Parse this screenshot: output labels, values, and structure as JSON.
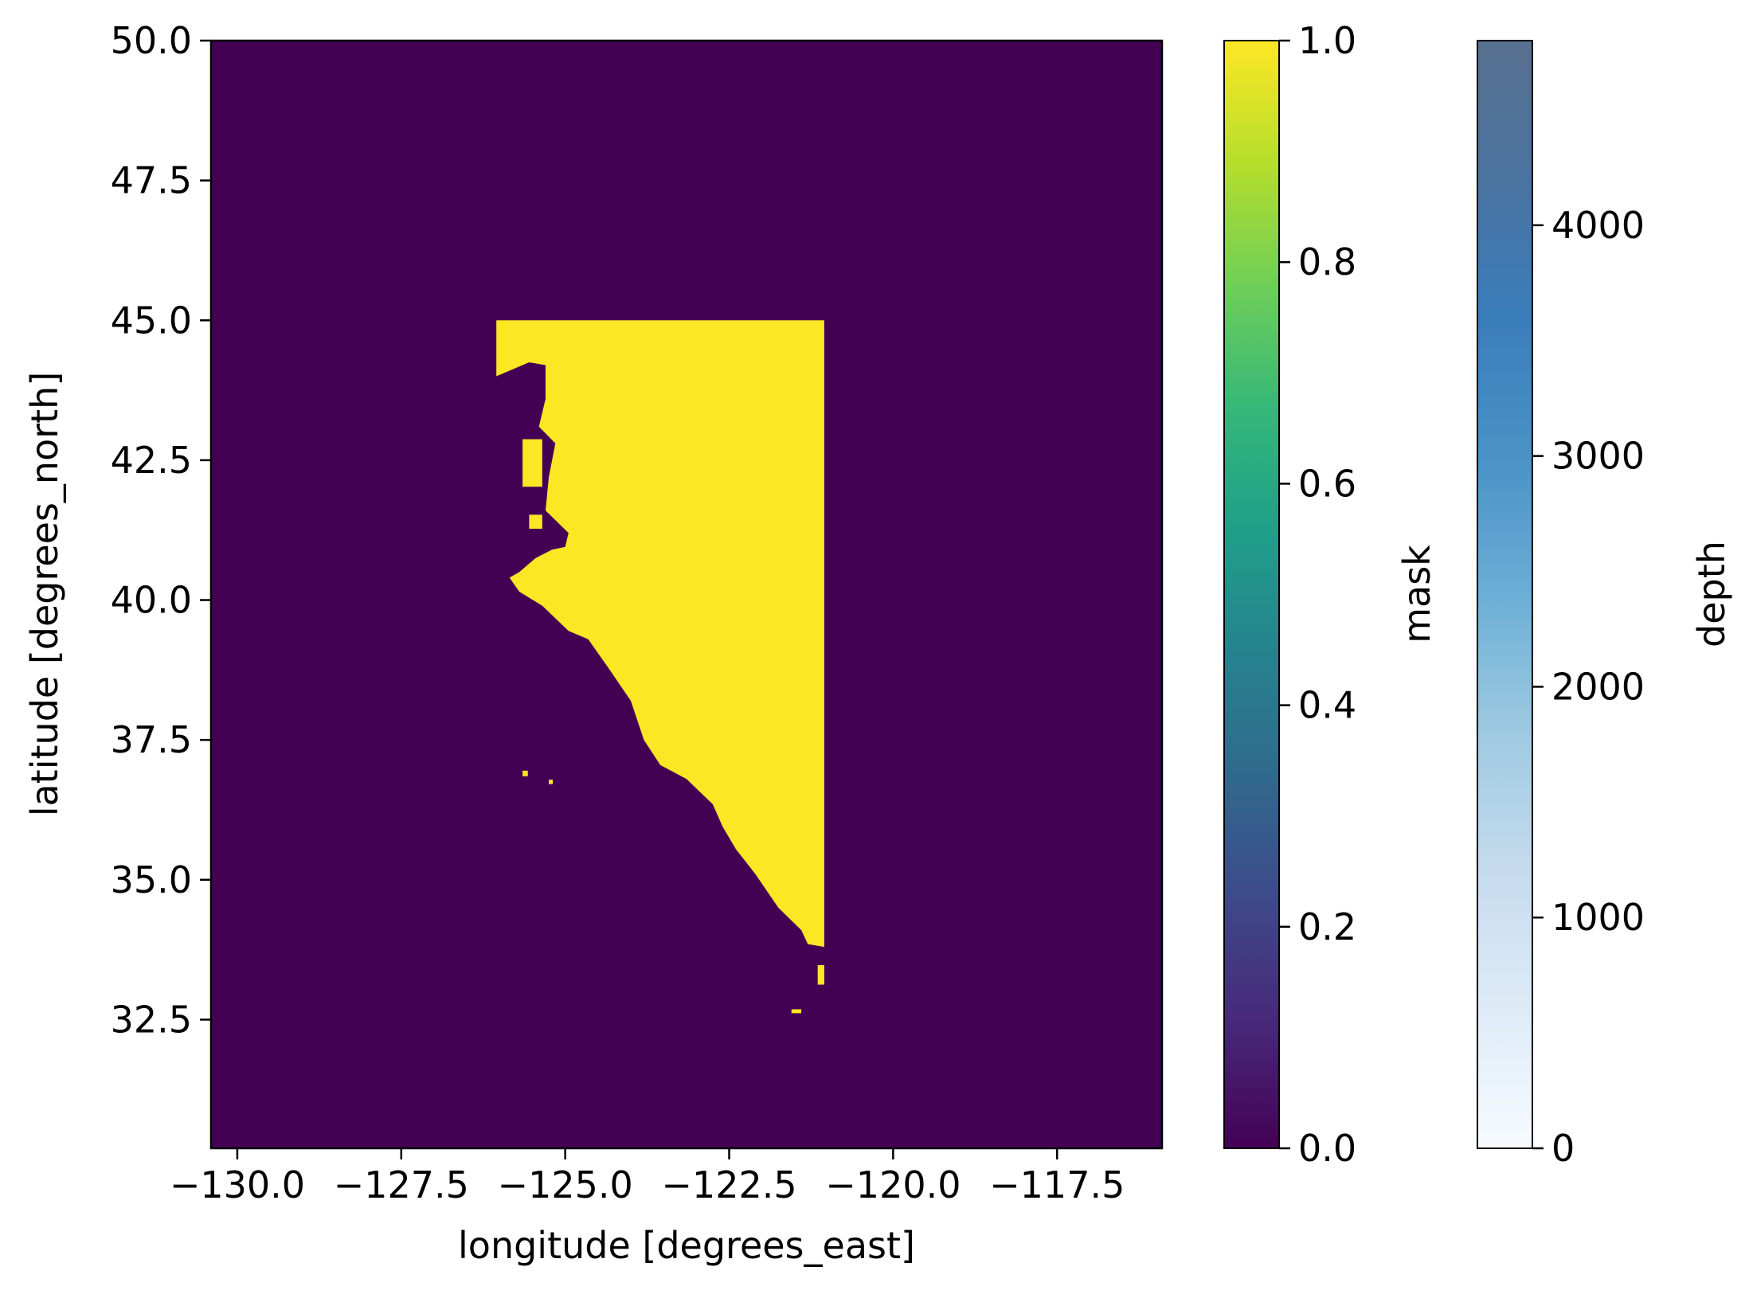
{
  "chart_data": {
    "type": "heatmap",
    "xlabel": "longitude [degrees_east]",
    "ylabel": "latitude [degrees_north]",
    "xlim": [
      -130.4,
      -115.9
    ],
    "ylim": [
      30.2,
      50.0
    ],
    "xticks": [
      -130.0,
      -127.5,
      -125.0,
      -122.5,
      -120.0,
      -117.5
    ],
    "xtick_labels": [
      "−130.0",
      "−127.5",
      "−125.0",
      "−122.5",
      "−120.0",
      "−117.5"
    ],
    "yticks": [
      32.5,
      35.0,
      37.5,
      40.0,
      42.5,
      45.0,
      47.5,
      50.0
    ],
    "ytick_labels": [
      "32.5",
      "35.0",
      "37.5",
      "40.0",
      "42.5",
      "45.0",
      "47.5",
      "50.0"
    ],
    "background_value": 0.0,
    "mask_region": {
      "value": 1.0,
      "description_bounds": {
        "lon_min": -126.05,
        "lon_max": -121.05,
        "lat_min": 33.8,
        "lat_max": 45.0
      },
      "coastline": [
        [
          -126.05,
          45.0
        ],
        [
          -121.05,
          45.0
        ],
        [
          -121.05,
          33.8
        ],
        [
          -121.3,
          33.85
        ],
        [
          -121.4,
          34.1
        ],
        [
          -121.75,
          34.5
        ],
        [
          -122.1,
          35.1
        ],
        [
          -122.4,
          35.55
        ],
        [
          -122.6,
          35.95
        ],
        [
          -122.75,
          36.35
        ],
        [
          -123.15,
          36.8
        ],
        [
          -123.55,
          37.05
        ],
        [
          -123.8,
          37.5
        ],
        [
          -124.0,
          38.2
        ],
        [
          -124.35,
          38.8
        ],
        [
          -124.65,
          39.3
        ],
        [
          -124.95,
          39.45
        ],
        [
          -125.35,
          39.9
        ],
        [
          -125.7,
          40.15
        ],
        [
          -125.85,
          40.4
        ],
        [
          -125.7,
          40.5
        ],
        [
          -125.45,
          40.75
        ],
        [
          -125.2,
          40.9
        ],
        [
          -125.0,
          40.95
        ],
        [
          -124.95,
          41.2
        ],
        [
          -125.3,
          41.6
        ],
        [
          -125.25,
          42.2
        ],
        [
          -125.15,
          42.8
        ],
        [
          -125.4,
          43.1
        ],
        [
          -125.3,
          43.6
        ],
        [
          -125.3,
          44.2
        ],
        [
          -125.55,
          44.25
        ],
        [
          -125.95,
          44.05
        ],
        [
          -126.05,
          44.0
        ]
      ],
      "islands": [
        {
          "lon": -125.65,
          "lat": 42.45,
          "w": 0.3,
          "h": 0.85
        },
        {
          "lon": -125.55,
          "lat": 41.4,
          "w": 0.2,
          "h": 0.25
        },
        {
          "lon": -125.65,
          "lat": 36.9,
          "w": 0.08,
          "h": 0.1
        },
        {
          "lon": -125.25,
          "lat": 36.75,
          "w": 0.06,
          "h": 0.08
        },
        {
          "lon": -122.2,
          "lat": 35.8,
          "w": 0.25,
          "h": 0.15
        },
        {
          "lon": -121.15,
          "lat": 33.3,
          "w": 0.1,
          "h": 0.35
        },
        {
          "lon": -121.55,
          "lat": 32.65,
          "w": 0.15,
          "h": 0.07
        }
      ]
    },
    "colorbars": [
      {
        "name": "mask",
        "label": "mask",
        "range": [
          0.0,
          1.0
        ],
        "ticks": [
          0.0,
          0.2,
          0.4,
          0.6,
          0.8,
          1.0
        ],
        "tick_labels": [
          "0.0",
          "0.2",
          "0.4",
          "0.6",
          "0.8",
          "1.0"
        ],
        "colormap": "viridis",
        "colors": [
          "#440154",
          "#482878",
          "#3e4989",
          "#31688e",
          "#26828e",
          "#1f9e89",
          "#35b779",
          "#6ece58",
          "#b5de2b",
          "#fde725"
        ]
      },
      {
        "name": "depth",
        "label": "depth",
        "range": [
          0,
          4800
        ],
        "ticks": [
          0,
          1000,
          2000,
          3000,
          4000
        ],
        "tick_labels": [
          "0",
          "1000",
          "2000",
          "3000",
          "4000"
        ],
        "colormap": "Blues",
        "colors": [
          "#f7fbff",
          "#deebf7",
          "#c6dbef",
          "#9ecae1",
          "#6baed6",
          "#4a92c6",
          "#3a7dbb",
          "#4a73a0",
          "#58708f"
        ]
      }
    ]
  }
}
